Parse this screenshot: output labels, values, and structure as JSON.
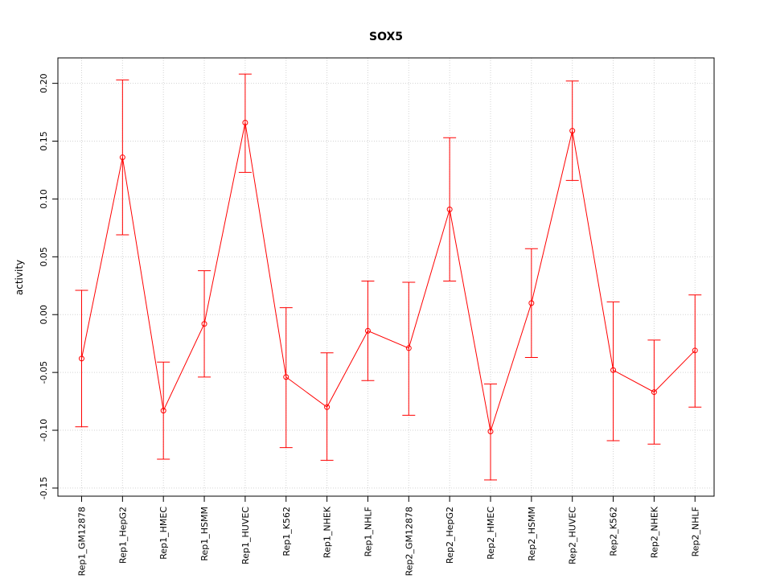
{
  "chart_data": {
    "type": "line",
    "title": "SOX5",
    "xlabel": "",
    "ylabel": "activity",
    "ylim": [
      -0.157,
      0.222
    ],
    "yticks": [
      "-0.15",
      "-0.10",
      "-0.05",
      "0.00",
      "0.05",
      "0.10",
      "0.15",
      "0.20"
    ],
    "grid": true,
    "color": "#ff0000",
    "categories": [
      "Rep1_GM12878",
      "Rep1_HepG2",
      "Rep1_HMEC",
      "Rep1_HSMM",
      "Rep1_HUVEC",
      "Rep1_K562",
      "Rep1_NHEK",
      "Rep1_NHLF",
      "Rep2_GM12878",
      "Rep2_HepG2",
      "Rep2_HMEC",
      "Rep2_HSMM",
      "Rep2_HUVEC",
      "Rep2_K562",
      "Rep2_NHEK",
      "Rep2_NHLF"
    ],
    "series": [
      {
        "name": "activity",
        "values": [
          -0.038,
          0.136,
          -0.083,
          -0.008,
          0.166,
          -0.054,
          -0.08,
          -0.014,
          -0.029,
          0.091,
          -0.101,
          0.01,
          0.159,
          -0.048,
          -0.067,
          -0.031
        ],
        "upper": [
          0.021,
          0.203,
          -0.041,
          0.038,
          0.208,
          0.006,
          -0.033,
          0.029,
          0.028,
          0.153,
          -0.06,
          0.057,
          0.202,
          0.011,
          -0.022,
          0.017
        ],
        "lower": [
          -0.097,
          0.069,
          -0.125,
          -0.054,
          0.123,
          -0.115,
          -0.126,
          -0.057,
          -0.087,
          0.029,
          -0.143,
          -0.037,
          0.116,
          -0.109,
          -0.112,
          -0.08
        ]
      }
    ]
  }
}
